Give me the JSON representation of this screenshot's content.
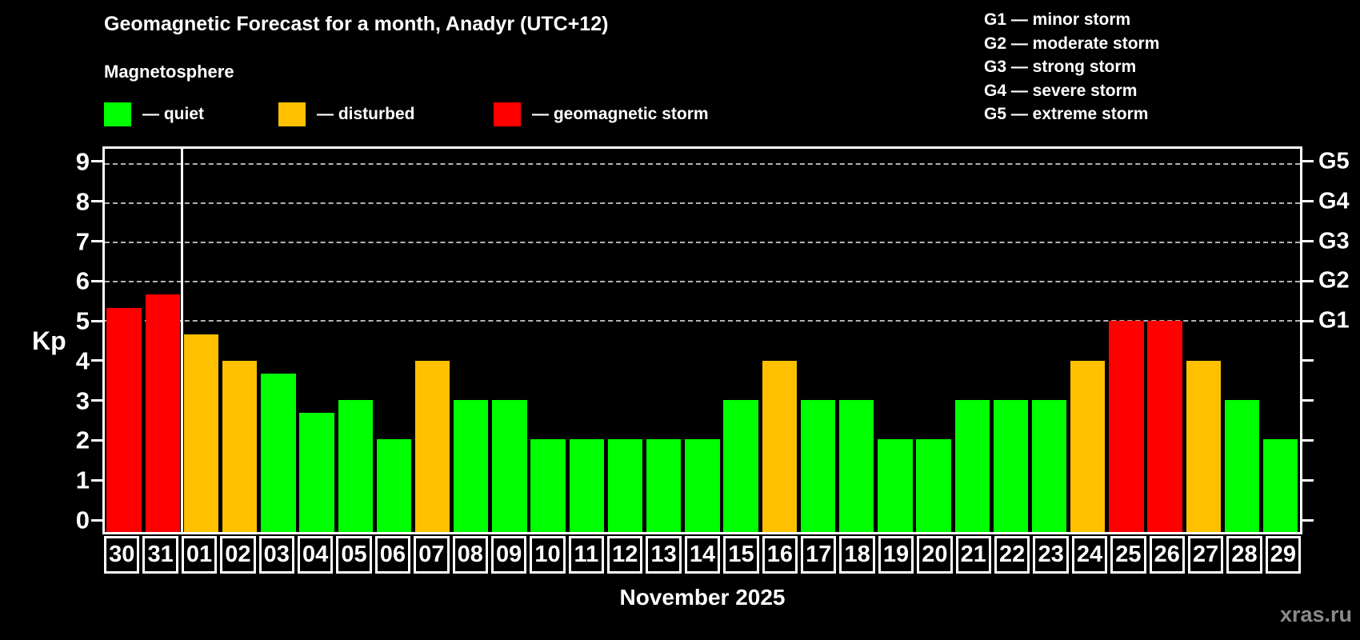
{
  "title": "Geomagnetic Forecast for a month, Anadyr (UTC+12)",
  "subtitle": "Magnetosphere",
  "legend": [
    {
      "key": "quiet",
      "label": "— quiet",
      "color": "#00ff00"
    },
    {
      "key": "disturbed",
      "label": "— disturbed",
      "color": "#ffc000"
    },
    {
      "key": "storm",
      "label": "— geomagnetic storm",
      "color": "#ff0000"
    }
  ],
  "storm_scale": [
    {
      "label": "G1 — minor storm"
    },
    {
      "label": "G2 — moderate storm"
    },
    {
      "label": "G3 — strong storm"
    },
    {
      "label": "G4 — severe storm"
    },
    {
      "label": "G5 — extreme storm"
    }
  ],
  "watermark": "xras.ru",
  "chart_data": {
    "type": "bar",
    "title": "Geomagnetic Forecast for a month, Anadyr (UTC+12)",
    "ylabel": "Kp",
    "xlabel": "November 2025",
    "ylim": [
      -0.36,
      9.38
    ],
    "yticks": [
      0,
      1,
      2,
      3,
      4,
      5,
      6,
      7,
      8,
      9
    ],
    "gridlines": [
      {
        "value": 5,
        "right_label": "G1"
      },
      {
        "value": 6,
        "right_label": "G2"
      },
      {
        "value": 7,
        "right_label": "G3"
      },
      {
        "value": 8,
        "right_label": "G4"
      },
      {
        "value": 9,
        "right_label": "G5"
      }
    ],
    "month_separator_before_category": "01",
    "categories": [
      "30",
      "31",
      "01",
      "02",
      "03",
      "04",
      "05",
      "06",
      "07",
      "08",
      "09",
      "10",
      "11",
      "12",
      "13",
      "14",
      "15",
      "16",
      "17",
      "18",
      "19",
      "20",
      "21",
      "22",
      "23",
      "24",
      "25",
      "26",
      "27",
      "28",
      "29"
    ],
    "values": [
      5.33,
      5.67,
      4.67,
      4,
      3.67,
      2.67,
      3,
      2,
      4,
      3,
      3,
      2,
      2,
      2,
      2,
      2,
      3,
      4,
      3,
      3,
      2,
      2,
      3,
      3,
      3,
      4,
      5,
      5,
      4,
      3,
      2
    ],
    "levels": [
      "storm",
      "storm",
      "disturbed",
      "disturbed",
      "quiet",
      "quiet",
      "quiet",
      "quiet",
      "disturbed",
      "quiet",
      "quiet",
      "quiet",
      "quiet",
      "quiet",
      "quiet",
      "quiet",
      "quiet",
      "disturbed",
      "quiet",
      "quiet",
      "quiet",
      "quiet",
      "quiet",
      "quiet",
      "quiet",
      "disturbed",
      "storm",
      "storm",
      "disturbed",
      "quiet",
      "quiet"
    ]
  }
}
